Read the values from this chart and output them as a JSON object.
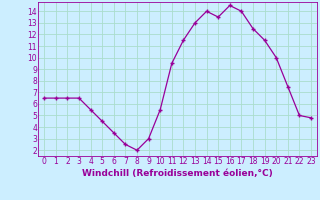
{
  "x": [
    0,
    1,
    2,
    3,
    4,
    5,
    6,
    7,
    8,
    9,
    10,
    11,
    12,
    13,
    14,
    15,
    16,
    17,
    18,
    19,
    20,
    21,
    22,
    23
  ],
  "y": [
    6.5,
    6.5,
    6.5,
    6.5,
    5.5,
    4.5,
    3.5,
    2.5,
    2.0,
    3.0,
    5.5,
    9.5,
    11.5,
    13.0,
    14.0,
    13.5,
    14.5,
    14.0,
    12.5,
    11.5,
    10.0,
    7.5,
    5.0,
    4.8
  ],
  "line_color": "#990099",
  "marker": "+",
  "marker_size": 3.5,
  "linewidth": 0.9,
  "xlabel": "Windchill (Refroidissement éolien,°C)",
  "xlim": [
    -0.5,
    23.5
  ],
  "ylim": [
    1.5,
    14.8
  ],
  "yticks": [
    2,
    3,
    4,
    5,
    6,
    7,
    8,
    9,
    10,
    11,
    12,
    13,
    14
  ],
  "xticks": [
    0,
    1,
    2,
    3,
    4,
    5,
    6,
    7,
    8,
    9,
    10,
    11,
    12,
    13,
    14,
    15,
    16,
    17,
    18,
    19,
    20,
    21,
    22,
    23
  ],
  "background_color": "#cceeff",
  "grid_color": "#aaddcc",
  "tick_color": "#990099",
  "label_color": "#990099",
  "font_size": 5.5,
  "xlabel_fontsize": 6.5,
  "marker_color": "#990099"
}
